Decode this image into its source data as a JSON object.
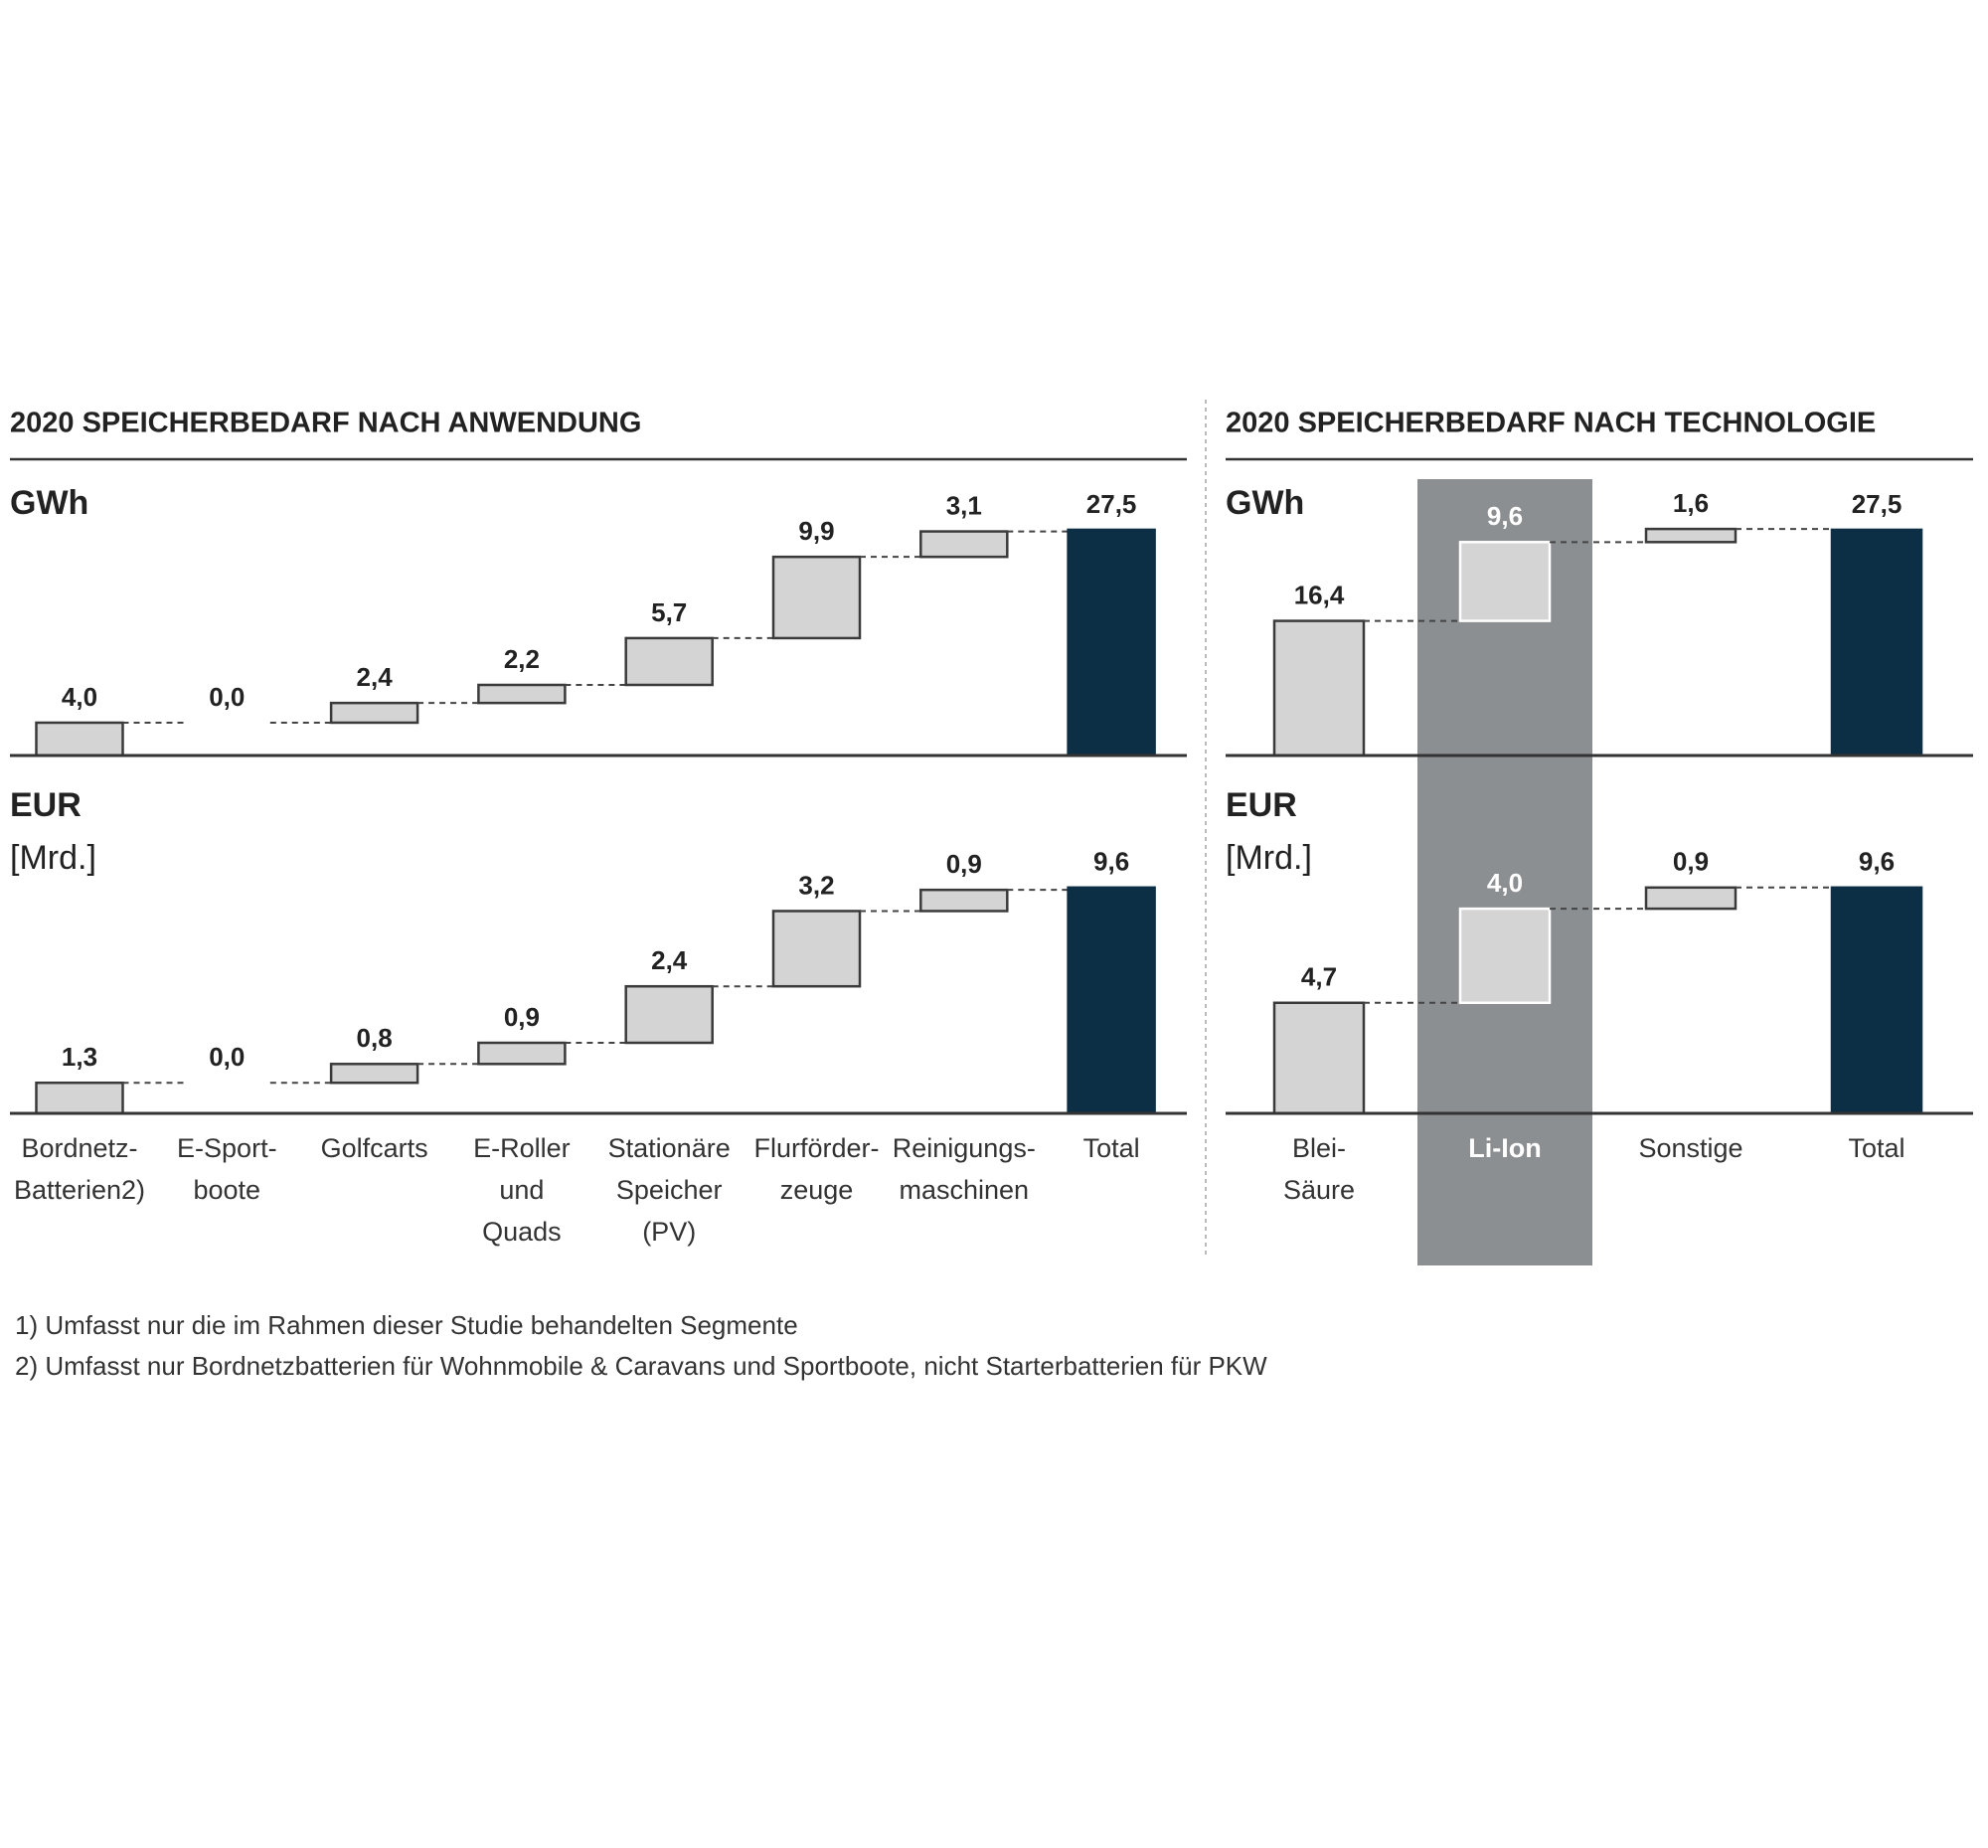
{
  "chart_data": [
    {
      "type": "waterfall",
      "title": "2020 SPEICHERBEDARF NACH ANWENDUNG",
      "y_label": "GWh",
      "values": [
        4.0,
        0.0,
        2.4,
        2.2,
        5.7,
        9.9,
        3.1,
        27.5
      ],
      "value_labels": [
        "4,0",
        "0,0",
        "2,4",
        "2,2",
        "5,7",
        "9,9",
        "3,1",
        "27,5"
      ],
      "ylim": [
        0,
        35
      ],
      "color": "#d4d4d4",
      "total_color": "#0d2f45",
      "last_is_total": true
    },
    {
      "type": "waterfall",
      "y_label": "EUR",
      "y_unit": "[Mrd.]",
      "categories": [
        [
          "Bordnetz-",
          "Batterien2)"
        ],
        [
          "E-Sport-",
          "boote"
        ],
        [
          "Golfcarts"
        ],
        [
          "E-Roller",
          "und",
          "Quads"
        ],
        [
          "Stationäre",
          "Speicher",
          "(PV)"
        ],
        [
          "Flurförder-",
          "zeuge"
        ],
        [
          "Reinigungs-",
          "maschinen"
        ],
        [
          "Total"
        ]
      ],
      "values": [
        1.3,
        0.0,
        0.8,
        0.9,
        2.4,
        3.2,
        0.9,
        9.6
      ],
      "value_labels": [
        "1,3",
        "0,0",
        "0,8",
        "0,9",
        "2,4",
        "3,2",
        "0,9",
        "9,6"
      ],
      "ylim": [
        0,
        12
      ],
      "color": "#d4d4d4",
      "total_color": "#0d2f45",
      "last_is_total": true
    },
    {
      "type": "waterfall",
      "title": "2020 SPEICHERBEDARF NACH TECHNOLOGIE",
      "y_label": "GWh",
      "values": [
        16.4,
        9.6,
        1.6,
        27.5
      ],
      "value_labels": [
        "16,4",
        "9,6",
        "1,6",
        "27,5"
      ],
      "ylim": [
        0,
        35
      ],
      "color": "#d4d4d4",
      "total_color": "#0d2f45",
      "last_is_total": true,
      "highlight": 1
    },
    {
      "type": "waterfall",
      "y_label": "EUR",
      "y_unit": "[Mrd.]",
      "categories": [
        [
          "Blei-",
          "Säure"
        ],
        [
          "Li-Ion"
        ],
        [
          "Sonstige"
        ],
        [
          "Total"
        ]
      ],
      "values": [
        4.7,
        4.0,
        0.9,
        9.6
      ],
      "value_labels": [
        "4,7",
        "4,0",
        "0,9",
        "9,6"
      ],
      "ylim": [
        0,
        12
      ],
      "color": "#d4d4d4",
      "total_color": "#0d2f45",
      "last_is_total": true,
      "highlight": 1
    }
  ],
  "footnotes": [
    "1) Umfasst nur die im Rahmen dieser Studie behandelten Segmente",
    "2) Umfasst nur Bordnetzbatterien für Wohnmobile & Caravans und Sportboote, nicht Starterbatterien für PKW"
  ]
}
